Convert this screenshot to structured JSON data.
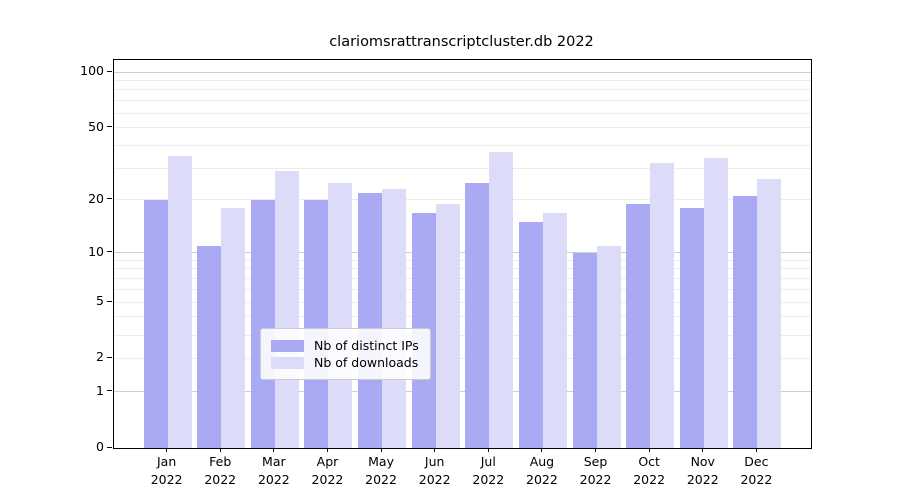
{
  "chart_data": {
    "type": "bar",
    "title": "clariomsrattranscriptcluster.db 2022",
    "categories": [
      "Jan",
      "Feb",
      "Mar",
      "Apr",
      "May",
      "Jun",
      "Jul",
      "Aug",
      "Sep",
      "Oct",
      "Nov",
      "Dec"
    ],
    "year_label": "2022",
    "series": [
      {
        "name": "Nb of distinct IPs",
        "color": "#a9a9f4",
        "values": [
          20,
          11,
          20,
          20,
          22,
          17,
          25,
          15,
          10,
          19,
          18,
          21
        ]
      },
      {
        "name": "Nb of downloads",
        "color": "#dcdcf8",
        "values": [
          35,
          18,
          29,
          25,
          23,
          19,
          37,
          17,
          11,
          32,
          34,
          26
        ]
      }
    ],
    "yscale": "log1p",
    "ylim": [
      0,
      100
    ],
    "yticks": [
      0,
      1,
      2,
      5,
      10,
      20,
      50,
      100
    ],
    "grid": true,
    "grid_major_values": [
      1,
      10,
      100
    ],
    "grid_minor_values": [
      2,
      3,
      4,
      5,
      6,
      7,
      8,
      9,
      20,
      30,
      40,
      50,
      60,
      70,
      80,
      90
    ],
    "legend_position": "lower center"
  },
  "colors": {
    "distinct_ips": "#a9a9f4",
    "downloads": "#dcdcf8",
    "grid_minor": "#ececec",
    "grid_major": "#cfcfcf",
    "spine": "#000000"
  }
}
